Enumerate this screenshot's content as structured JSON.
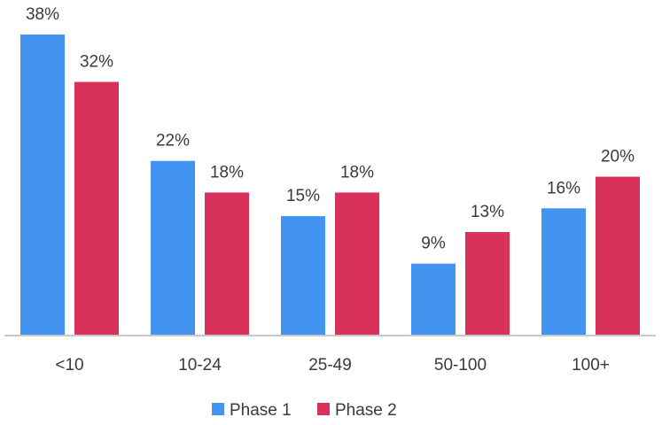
{
  "chart_data": {
    "type": "bar",
    "categories": [
      "<10",
      "10-24",
      "25-49",
      "50-100",
      "100+"
    ],
    "series": [
      {
        "name": "Phase 1",
        "color": "#4393f0",
        "values": [
          38,
          22,
          15,
          9,
          16
        ],
        "labels": [
          "38%",
          "22%",
          "15%",
          "9%",
          "16%"
        ]
      },
      {
        "name": "Phase 2",
        "color": "#d9325a",
        "values": [
          32,
          18,
          18,
          13,
          20
        ],
        "labels": [
          "32%",
          "18%",
          "18%",
          "13%",
          "20%"
        ]
      }
    ],
    "ylim": [
      0,
      38
    ],
    "grid": false,
    "legend": "bottom-center"
  }
}
